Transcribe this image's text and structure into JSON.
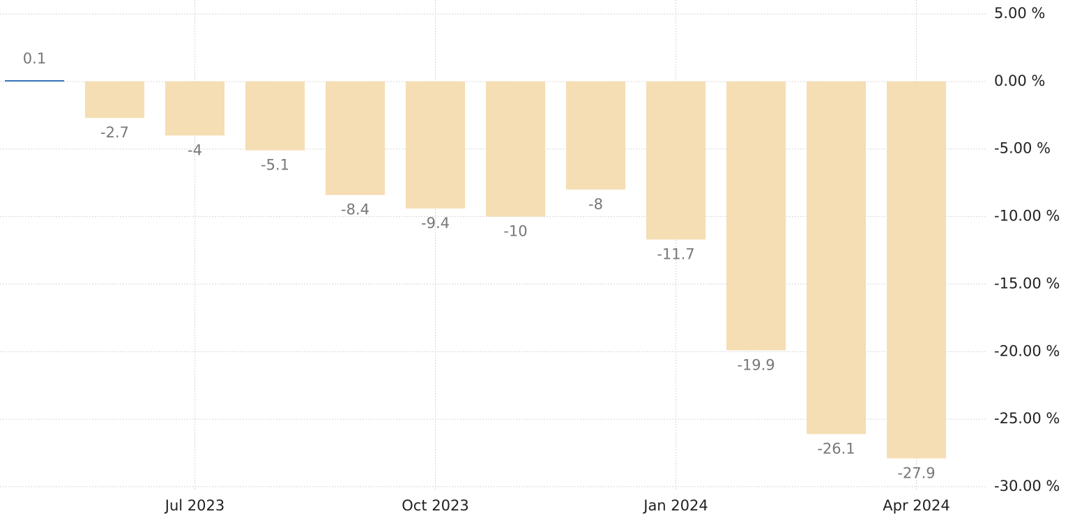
{
  "chart_data": {
    "type": "bar",
    "categories": [
      null,
      null,
      "Jul 2023",
      null,
      null,
      "Oct 2023",
      null,
      null,
      "Jan 2024",
      null,
      null,
      "Apr 2024"
    ],
    "values": [
      0.1,
      -2.7,
      -4,
      -5.1,
      -8.4,
      -9.4,
      -10,
      -8,
      -11.7,
      -19.9,
      -26.1,
      -27.9
    ],
    "colors": [
      "#2f6db5",
      "#f5deb3",
      "#f5deb3",
      "#f5deb3",
      "#f5deb3",
      "#f5deb3",
      "#f5deb3",
      "#f5deb3",
      "#f5deb3",
      "#f5deb3",
      "#f5deb3",
      "#f5deb3"
    ],
    "ylim": [
      -30,
      5
    ],
    "yticks": [
      {
        "value": 5,
        "label": "5.00 %"
      },
      {
        "value": 0,
        "label": "0.00 %"
      },
      {
        "value": -5,
        "label": "-5.00 %"
      },
      {
        "value": -10,
        "label": "-10.00 %"
      },
      {
        "value": -15,
        "label": "-15.00 %"
      },
      {
        "value": -20,
        "label": "-20.00 %"
      },
      {
        "value": -25,
        "label": "-25.00 %"
      },
      {
        "value": -30,
        "label": "-30.00 %"
      }
    ],
    "grid": true
  }
}
